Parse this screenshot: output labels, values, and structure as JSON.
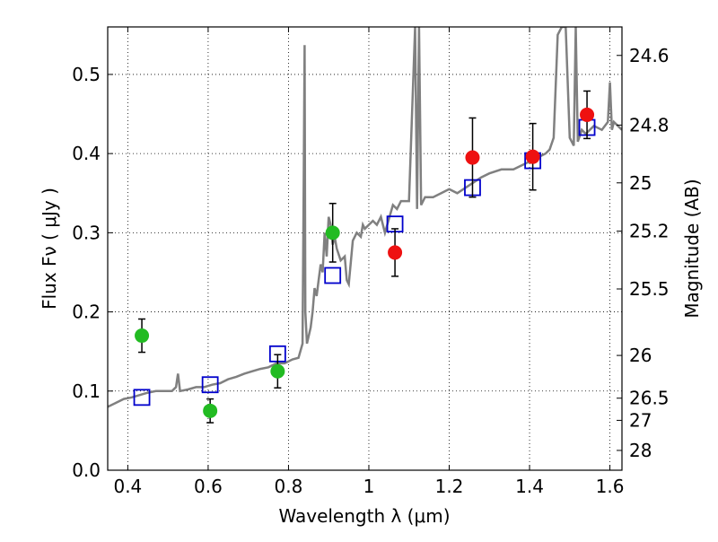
{
  "chart_data": {
    "type": "scatter",
    "xlabel": "Wavelength  λ (μm)",
    "ylabel": "Flux  Fν  ( μJy )",
    "y2label": "Magnitude (AB)",
    "xlim": [
      0.35,
      1.63
    ],
    "ylim": [
      0.0,
      0.56
    ],
    "grid": true,
    "x_ticks": [
      {
        "value": 0.4,
        "label": "0.4"
      },
      {
        "value": 0.6,
        "label": "0.6"
      },
      {
        "value": 0.8,
        "label": "0.8"
      },
      {
        "value": 1.0,
        "label": "1"
      },
      {
        "value": 1.2,
        "label": "1.2"
      },
      {
        "value": 1.4,
        "label": "1.4"
      },
      {
        "value": 1.6,
        "label": "1.6"
      }
    ],
    "y_ticks": [
      {
        "value": 0.0,
        "label": "0.0"
      },
      {
        "value": 0.1,
        "label": "0.1"
      },
      {
        "value": 0.2,
        "label": "0.2"
      },
      {
        "value": 0.3,
        "label": "0.3"
      },
      {
        "value": 0.4,
        "label": "0.4"
      },
      {
        "value": 0.5,
        "label": "0.5"
      }
    ],
    "y2_ticks": [
      {
        "flux": 0.524,
        "label": "24.6"
      },
      {
        "flux": 0.436,
        "label": "24.8"
      },
      {
        "flux": 0.363,
        "label": "25"
      },
      {
        "flux": 0.302,
        "label": "25.2"
      },
      {
        "flux": 0.229,
        "label": "25.5"
      },
      {
        "flux": 0.145,
        "label": "26"
      },
      {
        "flux": 0.091,
        "label": "26.5"
      },
      {
        "flux": 0.063,
        "label": "27"
      },
      {
        "flux": 0.025,
        "label": "28"
      }
    ],
    "series": [
      {
        "kind": "line",
        "color": "#808080",
        "x": [
          0.35,
          0.37,
          0.39,
          0.41,
          0.43,
          0.45,
          0.47,
          0.49,
          0.51,
          0.52,
          0.525,
          0.53,
          0.55,
          0.57,
          0.59,
          0.61,
          0.63,
          0.65,
          0.67,
          0.69,
          0.71,
          0.73,
          0.75,
          0.77,
          0.79,
          0.81,
          0.825,
          0.835,
          0.838,
          0.84,
          0.842,
          0.846,
          0.855,
          0.86,
          0.865,
          0.87,
          0.875,
          0.88,
          0.885,
          0.89,
          0.895,
          0.9,
          0.905,
          0.91,
          0.915,
          0.92,
          0.93,
          0.94,
          0.945,
          0.95,
          0.96,
          0.97,
          0.98,
          0.985,
          0.99,
          1.0,
          1.01,
          1.02,
          1.03,
          1.04,
          1.06,
          1.07,
          1.08,
          1.1,
          1.115,
          1.12,
          1.125,
          1.13,
          1.14,
          1.16,
          1.18,
          1.2,
          1.22,
          1.25,
          1.28,
          1.3,
          1.33,
          1.36,
          1.38,
          1.4,
          1.42,
          1.44,
          1.45,
          1.46,
          1.47,
          1.48,
          1.49,
          1.5,
          1.51,
          1.515,
          1.52,
          1.53,
          1.54,
          1.56,
          1.58,
          1.595,
          1.6,
          1.605,
          1.61,
          1.62,
          1.63
        ],
        "y": [
          0.08,
          0.085,
          0.09,
          0.092,
          0.095,
          0.098,
          0.1,
          0.1,
          0.1,
          0.105,
          0.122,
          0.1,
          0.102,
          0.105,
          0.105,
          0.108,
          0.11,
          0.115,
          0.118,
          0.122,
          0.125,
          0.128,
          0.13,
          0.135,
          0.135,
          0.14,
          0.142,
          0.16,
          0.38,
          0.537,
          0.2,
          0.16,
          0.18,
          0.2,
          0.23,
          0.22,
          0.24,
          0.26,
          0.25,
          0.3,
          0.27,
          0.32,
          0.31,
          0.285,
          0.295,
          0.28,
          0.265,
          0.27,
          0.24,
          0.235,
          0.29,
          0.3,
          0.295,
          0.31,
          0.305,
          0.31,
          0.315,
          0.31,
          0.32,
          0.3,
          0.335,
          0.33,
          0.34,
          0.34,
          0.56,
          0.33,
          0.56,
          0.335,
          0.345,
          0.345,
          0.35,
          0.355,
          0.35,
          0.36,
          0.37,
          0.375,
          0.38,
          0.38,
          0.385,
          0.39,
          0.395,
          0.4,
          0.405,
          0.42,
          0.55,
          0.56,
          0.56,
          0.42,
          0.41,
          0.56,
          0.415,
          0.43,
          0.425,
          0.435,
          0.43,
          0.44,
          0.49,
          0.43,
          0.44,
          0.435,
          0.43
        ]
      },
      {
        "kind": "model-points",
        "marker": "open-square",
        "color": "#0000cc",
        "x": [
          0.435,
          0.605,
          0.773,
          0.91,
          1.065,
          1.258,
          1.408,
          1.543
        ],
        "y": [
          0.092,
          0.108,
          0.147,
          0.246,
          0.311,
          0.357,
          0.391,
          0.433
        ]
      },
      {
        "kind": "observed",
        "marker": "filled-circle",
        "color": "#22bb22",
        "x": [
          0.435,
          0.605,
          0.773,
          0.91
        ],
        "y": [
          0.17,
          0.075,
          0.125,
          0.3
        ],
        "yerr": [
          0.021,
          0.015,
          0.021,
          0.037
        ]
      },
      {
        "kind": "observed",
        "marker": "filled-circle",
        "color": "#ee1111",
        "x": [
          1.065,
          1.258,
          1.408,
          1.543
        ],
        "y": [
          0.275,
          0.395,
          0.396,
          0.449
        ],
        "yerr": [
          0.03,
          0.05,
          0.042,
          0.03
        ]
      }
    ]
  }
}
